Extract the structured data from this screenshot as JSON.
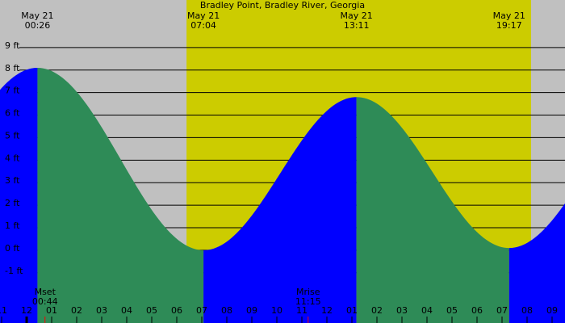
{
  "chart_data": {
    "type": "tide",
    "title": "Bradley Point, Bradley River, Georgia",
    "xlim": [
      -1.065,
      21.516
    ],
    "ylim": [
      -3.23,
      11.11
    ],
    "yticks": [
      {
        "value": -1,
        "label": "-1 ft"
      },
      {
        "value": 0,
        "label": "0 ft"
      },
      {
        "value": 1,
        "label": "1 ft"
      },
      {
        "value": 2,
        "label": "2 ft"
      },
      {
        "value": 3,
        "label": "3 ft"
      },
      {
        "value": 4,
        "label": "4 ft"
      },
      {
        "value": 5,
        "label": "5 ft"
      },
      {
        "value": 6,
        "label": "6 ft"
      },
      {
        "value": 7,
        "label": "7 ft"
      },
      {
        "value": 8,
        "label": "8 ft"
      },
      {
        "value": 9,
        "label": "9 ft"
      }
    ],
    "xticks": [
      {
        "value": -1,
        "label": "11"
      },
      {
        "value": 0,
        "label": "12"
      },
      {
        "value": 1,
        "label": "01"
      },
      {
        "value": 2,
        "label": "02"
      },
      {
        "value": 3,
        "label": "03"
      },
      {
        "value": 4,
        "label": "04"
      },
      {
        "value": 5,
        "label": "05"
      },
      {
        "value": 6,
        "label": "06"
      },
      {
        "value": 7,
        "label": "07"
      },
      {
        "value": 8,
        "label": "08"
      },
      {
        "value": 9,
        "label": "09"
      },
      {
        "value": 10,
        "label": "10"
      },
      {
        "value": 11,
        "label": "11"
      },
      {
        "value": 12,
        "label": "12"
      },
      {
        "value": 13,
        "label": "01"
      },
      {
        "value": 14,
        "label": "02"
      },
      {
        "value": 15,
        "label": "03"
      },
      {
        "value": 16,
        "label": "04"
      },
      {
        "value": 17,
        "label": "05"
      },
      {
        "value": 18,
        "label": "06"
      },
      {
        "value": 19,
        "label": "07"
      },
      {
        "value": 20,
        "label": "08"
      },
      {
        "value": 21,
        "label": "09"
      }
    ],
    "extremes": {
      "dates": [
        "May 21",
        "May 21",
        "May 21",
        "May 21"
      ],
      "times": [
        "00:26",
        "07:04",
        "13:11",
        "19:17"
      ],
      "x": [
        0.433,
        7.067,
        13.183,
        19.283
      ],
      "values": [
        8.1,
        0.0,
        6.8,
        0.1
      ]
    },
    "daylight": [
      6.39,
      20.16
    ],
    "moon": [
      {
        "label": "Mset",
        "time": "00:44",
        "x": 0.733
      },
      {
        "label": "Mrise",
        "time": "11:15",
        "x": 11.25
      }
    ],
    "colors": {
      "rising": "#0000ff",
      "falling": "#2e8b57",
      "day": "#cccc00",
      "night": "#c0c0c0",
      "moon": "#ff0000"
    },
    "grid": true
  }
}
